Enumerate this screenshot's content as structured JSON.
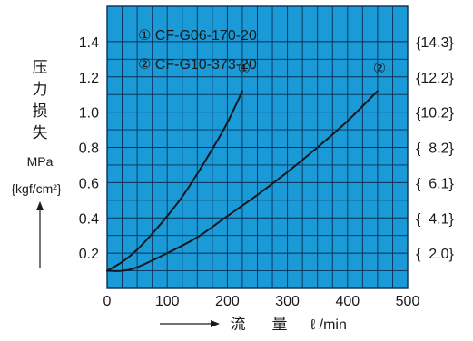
{
  "chart_data": {
    "type": "line",
    "title": "",
    "xlabel": {
      "text_cjk_1": "流",
      "text_cjk_2": "量",
      "unit": "ℓ /min"
    },
    "ylabel": {
      "chars": [
        "压",
        "力",
        "损",
        "失"
      ],
      "unit": "MPa",
      "unit_alt": "{kgf/cm²}"
    },
    "xlim": [
      0,
      500
    ],
    "ylim": [
      0,
      1.6
    ],
    "x_ticks": [
      0,
      100,
      200,
      300,
      400,
      500
    ],
    "x_tick_labels": [
      "0",
      "100",
      "200",
      "300",
      "400",
      "500"
    ],
    "y_ticks": [
      0.2,
      0.4,
      0.6,
      0.8,
      1.0,
      1.2,
      1.4
    ],
    "y_tick_labels": [
      "0.2",
      "0.4",
      "0.6",
      "0.8",
      "1.0",
      "1.2",
      "1.4"
    ],
    "y2_tick_labels": [
      "{  2.0}",
      "{  4.1}",
      "{  6.1}",
      "{  8.2}",
      "{10.2}",
      "{12.2}",
      "{14.3}"
    ],
    "grid": true,
    "legend_position": "top-left",
    "legend": [
      "① CF-G06-170-20",
      "② CF-G10-373-20"
    ],
    "series": [
      {
        "marker": "①",
        "values": [
          [
            0,
            0.1
          ],
          [
            25,
            0.15
          ],
          [
            50,
            0.22
          ],
          [
            75,
            0.31
          ],
          [
            100,
            0.41
          ],
          [
            125,
            0.52
          ],
          [
            150,
            0.65
          ],
          [
            175,
            0.79
          ],
          [
            200,
            0.94
          ],
          [
            225,
            1.12
          ]
        ]
      },
      {
        "marker": "②",
        "values": [
          [
            0,
            0.1
          ],
          [
            25,
            0.1
          ],
          [
            50,
            0.12
          ],
          [
            100,
            0.2
          ],
          [
            150,
            0.29
          ],
          [
            200,
            0.41
          ],
          [
            250,
            0.53
          ],
          [
            300,
            0.66
          ],
          [
            350,
            0.8
          ],
          [
            400,
            0.95
          ],
          [
            450,
            1.12
          ]
        ]
      }
    ],
    "colors": {
      "plot_bg": "#1a9ad6",
      "grid": "#0b2f55",
      "line": "#14181f",
      "text": "#1a1a1a"
    }
  }
}
